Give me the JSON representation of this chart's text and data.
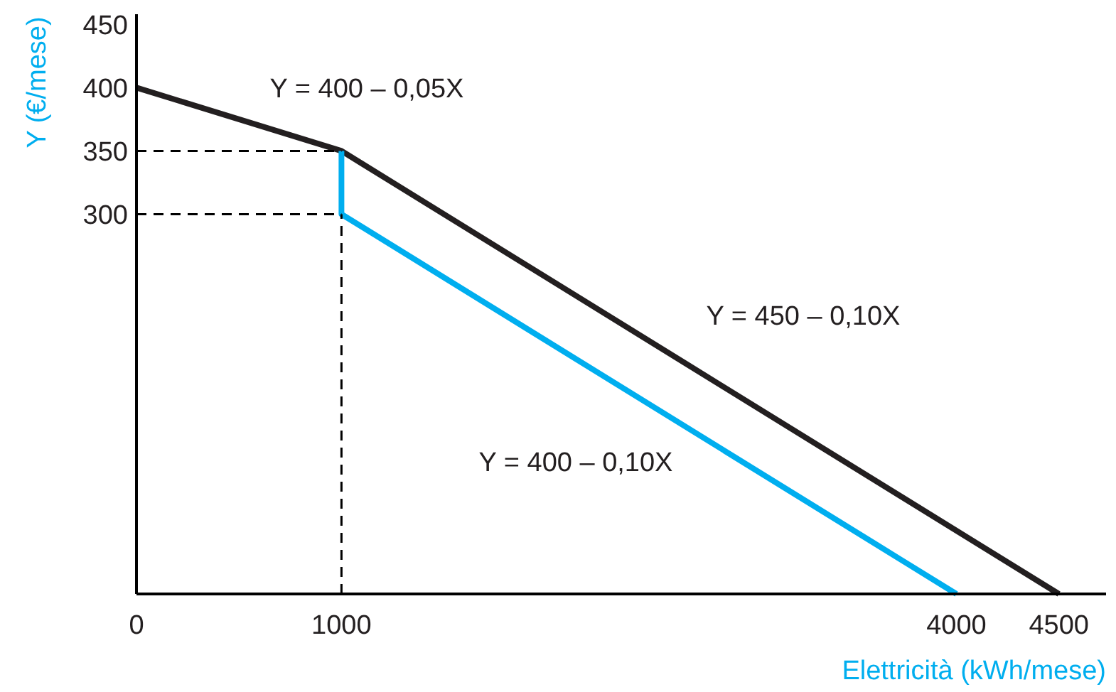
{
  "chart_data": {
    "type": "line",
    "xlabel": "Elettricità (kWh/mese)",
    "ylabel": "Y (€/mese)",
    "xlim": [
      0,
      4730
    ],
    "ylim": [
      0,
      458
    ],
    "xticks": [
      0,
      1000,
      4000,
      4500
    ],
    "yticks": [
      300,
      350,
      400,
      450
    ],
    "grid": false,
    "marker": "none",
    "series": [
      {
        "color": "#231f20",
        "x": [
          0,
          1000,
          4500
        ],
        "values": [
          400,
          350,
          0
        ]
      },
      {
        "color": "#00aeef",
        "x": [
          1000,
          1000,
          4000
        ],
        "values": [
          350,
          300,
          0
        ]
      },
      {
        "color": "#000000",
        "line_style": "dashed",
        "x": [
          0,
          1000
        ],
        "values": [
          350,
          350
        ]
      },
      {
        "color": "#000000",
        "line_style": "dashed",
        "x": [
          0,
          1000
        ],
        "values": [
          300,
          300
        ]
      },
      {
        "color": "#000000",
        "line_style": "dashed",
        "x": [
          1000,
          1000
        ],
        "values": [
          0,
          300
        ]
      }
    ],
    "annotations": [
      "Y = 400 – 0,05X",
      "Y = 450 – 0,10X",
      "Y = 400 – 0,10X"
    ]
  }
}
